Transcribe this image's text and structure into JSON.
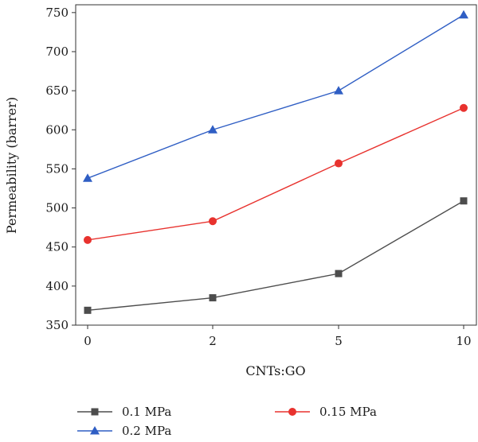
{
  "chart_data": {
    "type": "line",
    "categories": [
      "0",
      "2",
      "5",
      "10"
    ],
    "xlabel": "CNTs:GO",
    "ylabel": "Permeability (barrer)",
    "ylim": [
      350,
      760
    ],
    "yticks": [
      350,
      400,
      450,
      500,
      550,
      600,
      650,
      700,
      750
    ],
    "grid": false,
    "legend_position": "bottom",
    "series": [
      {
        "name": "0.1 MPa",
        "values": [
          369,
          385,
          416,
          509
        ],
        "color": "#4d4d4d",
        "marker": "square"
      },
      {
        "name": "0.15 MPa",
        "values": [
          459,
          483,
          557,
          628
        ],
        "color": "#e8322e",
        "marker": "circle"
      },
      {
        "name": "0.2 MPa",
        "values": [
          538,
          600,
          650,
          747
        ],
        "color": "#2f5ec4",
        "marker": "triangle"
      }
    ]
  }
}
